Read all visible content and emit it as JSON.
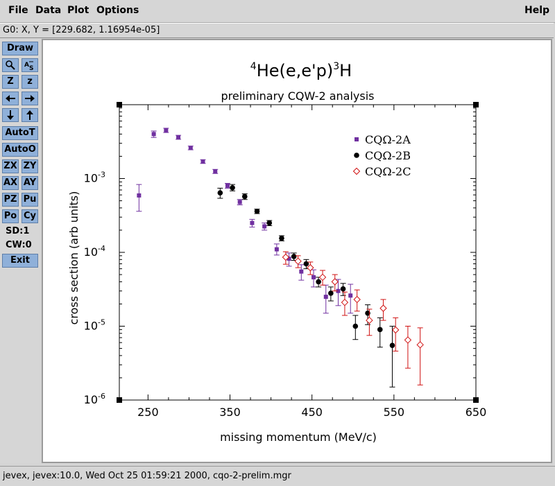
{
  "menu": {
    "file": "File",
    "data": "Data",
    "plot": "Plot",
    "options": "Options",
    "help": "Help"
  },
  "coord_readout": "G0: X, Y = [229.682, 1.16954e-05]",
  "toolbar": {
    "draw": "Draw",
    "zoom_in": "Z",
    "zoom_out": "z",
    "auto_t": "AutoT",
    "auto_o": "AutoO",
    "zx": "ZX",
    "zy": "ZY",
    "ax": "AX",
    "ay": "AY",
    "pz": "PZ",
    "pu": "Pu",
    "po": "Po",
    "cy": "Cy",
    "sd": "SD:1",
    "cw": "CW:0",
    "exit": "Exit"
  },
  "status": "jevex, jevex:10.0, Wed Oct 25 01:59:21 2000, cqo-2-prelim.mgr",
  "chart_data": {
    "type": "scatter",
    "title": "preliminary CQW-2 analysis",
    "reaction": {
      "a": "4",
      "b": "He(e,e'p)",
      "c": "3",
      "d": "H"
    },
    "xlabel": "missing momentum (MeV/c)",
    "ylabel": "cross section (arb units)",
    "xlim": [
      215,
      650
    ],
    "ylim": [
      1e-06,
      0.01
    ],
    "log_y": true,
    "x_ticks": [
      250,
      350,
      450,
      550,
      650
    ],
    "y_ticks": [
      {
        "value": 1e-06,
        "mantissa": "10",
        "exp": "-6"
      },
      {
        "value": 1e-05,
        "mantissa": "10",
        "exp": "-5"
      },
      {
        "value": 0.0001,
        "mantissa": "10",
        "exp": "-4"
      },
      {
        "value": 0.001,
        "mantissa": "10",
        "exp": "-3"
      }
    ],
    "legend_position": "top-right",
    "grid": false,
    "series": [
      {
        "name": "CQΩ-2A",
        "color": "#7030a0",
        "marker": "square",
        "points": [
          [
            239,
            0.00059,
            0.00036,
            0.00083
          ],
          [
            257,
            0.004,
            0.0036,
            0.0044
          ],
          [
            272,
            0.0045,
            0.0042,
            0.0048
          ],
          [
            287,
            0.0036,
            0.0034,
            0.00385
          ],
          [
            302,
            0.0026,
            0.00245,
            0.00275
          ],
          [
            317,
            0.0017,
            0.0016,
            0.0018
          ],
          [
            332,
            0.00125,
            0.00117,
            0.00133
          ],
          [
            347,
            0.0008,
            0.00074,
            0.00086
          ],
          [
            362,
            0.00048,
            0.00044,
            0.00052
          ],
          [
            377,
            0.00025,
            0.00022,
            0.00028
          ],
          [
            392,
            0.000225,
            0.0002,
            0.00025
          ],
          [
            407,
            0.00011,
            9.2e-05,
            0.00013
          ],
          [
            422,
            8.2e-05,
            6.5e-05,
            9.8e-05
          ],
          [
            437,
            5.5e-05,
            4.2e-05,
            6.8e-05
          ],
          [
            452,
            4.6e-05,
            3.4e-05,
            5.8e-05
          ],
          [
            467,
            2.5e-05,
            1.5e-05,
            3.6e-05
          ],
          [
            482,
            3e-05,
            1.9e-05,
            4.3e-05
          ],
          [
            497,
            2.6e-05,
            1.5e-05,
            3.7e-05
          ]
        ]
      },
      {
        "name": "CQΩ-2B",
        "color": "#000000",
        "marker": "circle",
        "points": [
          [
            338,
            0.00064,
            0.00054,
            0.00074
          ],
          [
            353,
            0.00075,
            0.00068,
            0.00083
          ],
          [
            368,
            0.00057,
            0.00052,
            0.00062
          ],
          [
            383,
            0.00036,
            0.000335,
            0.000385
          ],
          [
            398,
            0.00025,
            0.00023,
            0.00027
          ],
          [
            413,
            0.000155,
            0.000143,
            0.000168
          ],
          [
            428,
            8.8e-05,
            7.8e-05,
            9.8e-05
          ],
          [
            443,
            7e-05,
            6e-05,
            8e-05
          ],
          [
            458,
            4e-05,
            3.4e-05,
            4.6e-05
          ],
          [
            473,
            2.8e-05,
            2.2e-05,
            3.4e-05
          ],
          [
            488,
            3.2e-05,
            2.6e-05,
            3.8e-05
          ],
          [
            503,
            1e-05,
            6.6e-06,
            1.4e-05
          ],
          [
            518,
            1.5e-05,
            1.05e-05,
            1.95e-05
          ],
          [
            533,
            9e-06,
            5.2e-06,
            1.3e-05
          ],
          [
            548,
            5.5e-06,
            1.5e-06,
            1e-05
          ]
        ]
      },
      {
        "name": "CQΩ-2C",
        "color": "#d01010",
        "marker": "diamond",
        "points": [
          [
            418,
            8.6e-05,
            6.9e-05,
            0.000102
          ],
          [
            433,
            7.6e-05,
            6.2e-05,
            9e-05
          ],
          [
            448,
            6.2e-05,
            5e-05,
            7.4e-05
          ],
          [
            463,
            4.6e-05,
            3.6e-05,
            5.7e-05
          ],
          [
            478,
            4e-05,
            3e-05,
            5e-05
          ],
          [
            490,
            2.1e-05,
            1.4e-05,
            2.9e-05
          ],
          [
            505,
            2.3e-05,
            1.6e-05,
            3.1e-05
          ],
          [
            520,
            1.2e-05,
            7.5e-06,
            1.7e-05
          ],
          [
            537,
            1.75e-05,
            1.2e-05,
            2.3e-05
          ],
          [
            552,
            8.9e-06,
            4.6e-06,
            1.3e-05
          ],
          [
            567,
            6.5e-06,
            2.7e-06,
            1e-05
          ],
          [
            582,
            5.6e-06,
            1.6e-06,
            9.5e-06
          ]
        ]
      }
    ]
  }
}
